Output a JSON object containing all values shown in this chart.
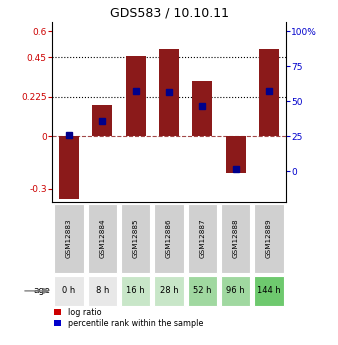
{
  "title": "GDS583 / 10.10.11",
  "samples": [
    "GSM12883",
    "GSM12884",
    "GSM12885",
    "GSM12886",
    "GSM12887",
    "GSM12888",
    "GSM12889"
  ],
  "ages": [
    "0 h",
    "8 h",
    "16 h",
    "28 h",
    "52 h",
    "96 h",
    "144 h"
  ],
  "log_ratio": [
    -0.36,
    0.175,
    0.46,
    0.5,
    0.315,
    -0.21,
    0.5
  ],
  "percentile": [
    26,
    36,
    57.5,
    56.5,
    46.5,
    1.5,
    57.5
  ],
  "bar_color": "#8B1A1A",
  "dot_color": "#00008B",
  "yticks_left": [
    -0.3,
    0,
    0.225,
    0.45,
    0.6
  ],
  "ylim_left": [
    -0.38,
    0.65
  ],
  "yticks_right": [
    0,
    25,
    50,
    75,
    100
  ],
  "hline_values": [
    0.225,
    0.45
  ],
  "age_bg_colors": [
    "#e8e8e8",
    "#e8e8e8",
    "#c8e6c8",
    "#c8e6c8",
    "#a0d8a0",
    "#a0d8a0",
    "#6ec96e"
  ],
  "gsm_bg": "#d0d0d0",
  "legend_bar_color": "#cc0000",
  "legend_dot_color": "#0000cc",
  "bg_color": "#ffffff"
}
